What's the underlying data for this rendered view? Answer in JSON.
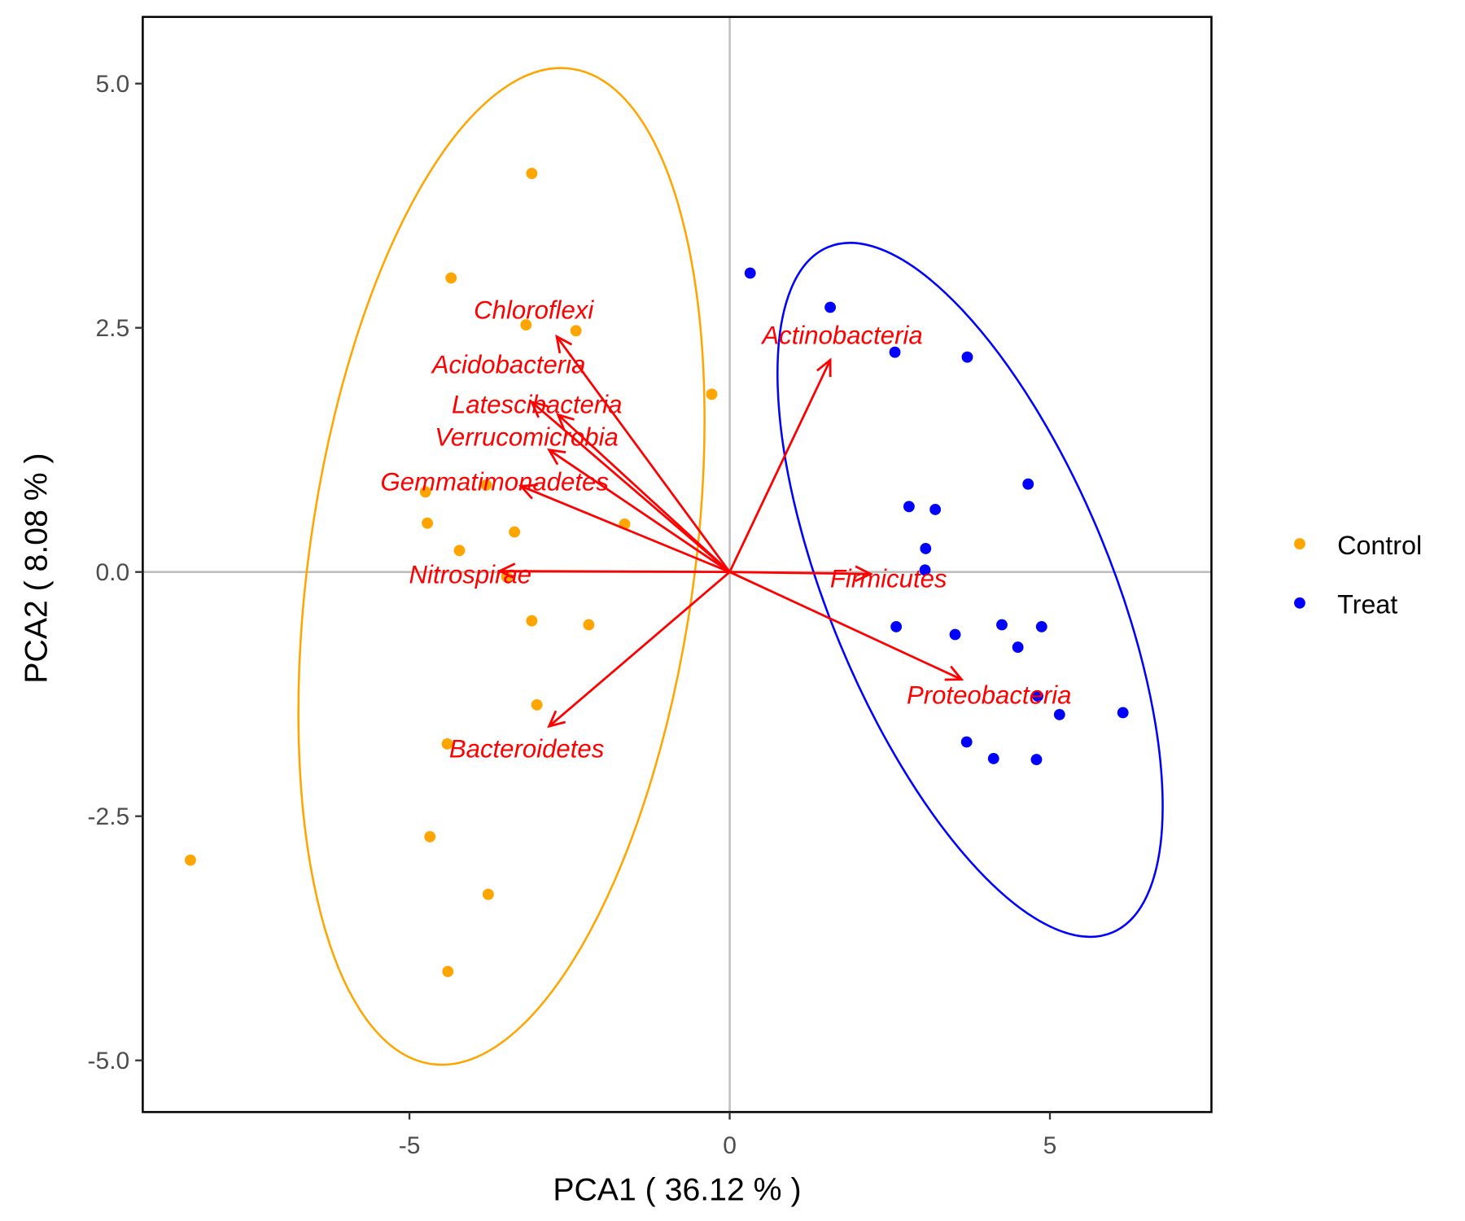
{
  "chart_data": {
    "type": "scatter",
    "subtype": "pca-biplot",
    "xlabel": "PCA1 ( 36.12 % )",
    "ylabel": "PCA2 ( 8.08 % )",
    "xlim": [
      -9.15,
      7.5
    ],
    "ylim": [
      -5.5,
      5.7
    ],
    "xticks": [
      {
        "v": -5,
        "label": "-5"
      },
      {
        "v": 0,
        "label": "0"
      },
      {
        "v": 5,
        "label": "5"
      }
    ],
    "yticks": [
      {
        "v": 5,
        "label": "5.0"
      },
      {
        "v": 2.5,
        "label": "2.5"
      },
      {
        "v": 0,
        "label": "0.0"
      },
      {
        "v": -2.5,
        "label": "-2.5"
      },
      {
        "v": -5,
        "label": "-5.0"
      }
    ],
    "grid": false,
    "reference_lines": {
      "x": 0,
      "y": 0,
      "color": "#bebebe"
    },
    "legend": {
      "position": "right"
    },
    "series": [
      {
        "name": "Control",
        "color": "#ffa500",
        "ellipse": true,
        "points": [
          [
            -3.09,
            4.08
          ],
          [
            -4.35,
            3.01
          ],
          [
            -3.18,
            2.53
          ],
          [
            -2.4,
            2.47
          ],
          [
            -0.28,
            1.82
          ],
          [
            -4.75,
            0.82
          ],
          [
            -3.8,
            0.89
          ],
          [
            -4.72,
            0.5
          ],
          [
            -4.22,
            0.22
          ],
          [
            -3.36,
            0.41
          ],
          [
            -1.64,
            0.49
          ],
          [
            -3.48,
            -0.05
          ],
          [
            -3.09,
            -0.5
          ],
          [
            -2.2,
            -0.54
          ],
          [
            -3.01,
            -1.36
          ],
          [
            -4.41,
            -1.76
          ],
          [
            -4.68,
            -2.71
          ],
          [
            -3.77,
            -3.3
          ],
          [
            -4.4,
            -4.09
          ],
          [
            -8.42,
            -2.95
          ]
        ]
      },
      {
        "name": "Treat",
        "color": "#0000ff",
        "ellipse": true,
        "points": [
          [
            0.32,
            3.06
          ],
          [
            1.57,
            2.71
          ],
          [
            2.58,
            2.25
          ],
          [
            3.71,
            2.2
          ],
          [
            4.66,
            0.9
          ],
          [
            2.8,
            0.67
          ],
          [
            3.21,
            0.64
          ],
          [
            3.06,
            0.24
          ],
          [
            3.05,
            0.02
          ],
          [
            2.6,
            -0.56
          ],
          [
            3.52,
            -0.64
          ],
          [
            4.25,
            -0.54
          ],
          [
            4.87,
            -0.56
          ],
          [
            4.5,
            -0.77
          ],
          [
            4.81,
            -1.27
          ],
          [
            5.15,
            -1.46
          ],
          [
            6.14,
            -1.44
          ],
          [
            3.7,
            -1.74
          ],
          [
            4.12,
            -1.91
          ],
          [
            4.79,
            -1.92
          ]
        ]
      }
    ],
    "loadings": {
      "color": "#ff0000",
      "arrows": [
        {
          "name": "Chloroflexi",
          "x": -2.7,
          "y": 2.41,
          "label_x": -3.06,
          "label_y": 2.68
        },
        {
          "name": "Acidobacteria",
          "x": -3.09,
          "y": 1.74,
          "label_x": -3.45,
          "label_y": 1.91
        },
        {
          "name": "Latescibacteria",
          "x": -2.68,
          "y": 1.61,
          "label_x": -3.01,
          "label_y": 1.79
        },
        {
          "name": "Verrucomicrobia",
          "x": -2.82,
          "y": 1.25,
          "label_x": -3.17,
          "label_y": 1.38
        },
        {
          "name": "Gemmatimonadetes",
          "x": -3.26,
          "y": 0.88,
          "label_x": -3.67,
          "label_y": 0.92
        },
        {
          "name": "Nitrospirae",
          "x": -3.59,
          "y": 0.01,
          "label_x": -4.05,
          "label_y": -0.03
        },
        {
          "name": "Bacteroidetes",
          "x": -2.82,
          "y": -1.58,
          "label_x": -3.17,
          "label_y": -1.81
        },
        {
          "name": "Actinobacteria",
          "x": 1.57,
          "y": 2.17,
          "label_x": 1.76,
          "label_y": 2.42
        },
        {
          "name": "Firmicutes",
          "x": 2.2,
          "y": -0.02,
          "label_x": 2.48,
          "label_y": -0.07
        },
        {
          "name": "Proteobacteria",
          "x": 3.62,
          "y": -1.1,
          "label_x": 4.05,
          "label_y": -1.26
        }
      ]
    }
  }
}
